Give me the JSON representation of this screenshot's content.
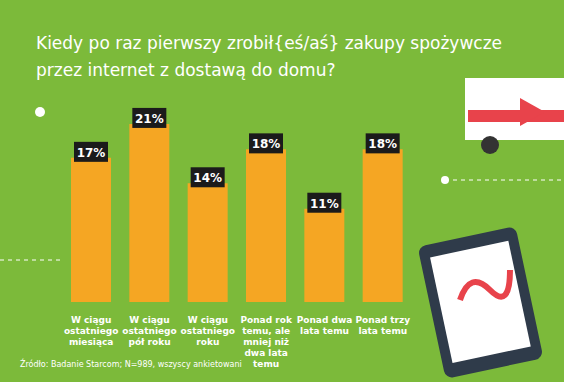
{
  "chart_data": {
    "type": "bar",
    "title": "Kiedy po raz pierwszy zrobił{eś/aś} zakupy spożywcze przez internet z dostawą do domu?",
    "categories": [
      "W ciągu ostatniego miesiąca",
      "W ciągu ostatniego pół roku",
      "W ciągu ostatniego roku",
      "Ponad rok temu, ale mniej niż dwa lata temu",
      "Ponad dwa lata temu",
      "Ponad trzy lata temu"
    ],
    "values": [
      17,
      21,
      14,
      18,
      11,
      18
    ],
    "value_labels": [
      "17%",
      "21%",
      "14%",
      "18%",
      "11%",
      "18%"
    ],
    "color": "#f5a623",
    "ylim": [
      0,
      25
    ],
    "data_labels": true,
    "tick_labels": "x",
    "grid": false,
    "source": "Źródło: Badanie Starcom; N=989, wszyscy ankietowani"
  }
}
